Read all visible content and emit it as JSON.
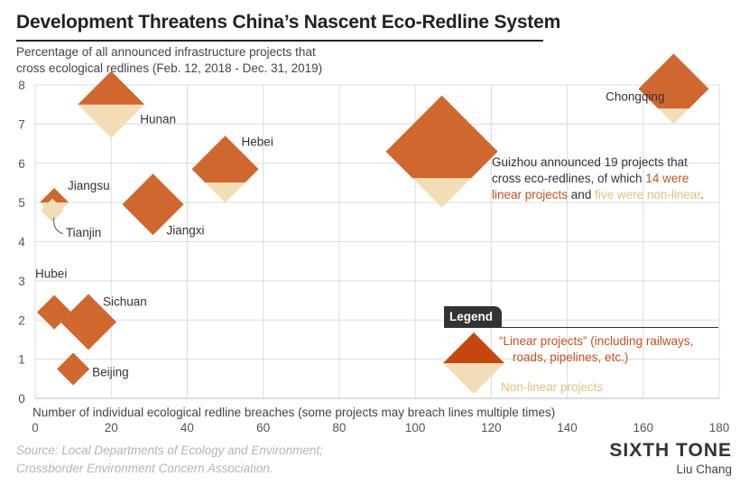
{
  "title": "Development Threatens China’s Nascent Eco-Redline System",
  "ylabel_lines": [
    "Percentage of all announced infrastructure projects that",
    "cross ecological redlines (Feb. 12, 2018 - Dec. 31, 2019)"
  ],
  "xlabel": "Number of individual ecological redline breaches (some projects may breach lines multiple times)",
  "source_lines": [
    "Source: Local Departments of Ecology and Environment;",
    "Crossborder Environment Concern Association."
  ],
  "brand": "SIXTH TONE",
  "author": "Liu Chang",
  "colors": {
    "linear": "#d0672f",
    "nonlinear": "#f3dcb6",
    "legend_linear": "#c4470e",
    "linear_text": "#c9501c",
    "nonlinear_text": "#e9bf7c"
  },
  "legend": {
    "title": "Legend",
    "linear_label_line1": "“Linear projects” (including railways,",
    "linear_label_line2": "roads, pipelines, etc.)",
    "nonlinear_label": "Non-linear projects"
  },
  "annotation": {
    "line1": "Guizhou announced 19 projects that",
    "line2": "cross eco-redlines, of which ",
    "linear_part": "14 were linear projects",
    "mid": " and ",
    "nonlinear_part": "five were non-linear",
    "end": "."
  },
  "chart_data": {
    "type": "scatter",
    "x_axis": {
      "min": 0,
      "max": 180,
      "ticks": [
        0,
        20,
        40,
        60,
        80,
        100,
        120,
        140,
        160,
        180
      ]
    },
    "y_axis": {
      "min": 0,
      "max": 8,
      "ticks": [
        0,
        1,
        2,
        3,
        4,
        5,
        6,
        7,
        8
      ]
    },
    "grid": true,
    "marker": "diamond sized by project count, split into linear (top) and non-linear (bottom) projects",
    "points": [
      {
        "name": "Hunan",
        "x": 20,
        "y": 7.5,
        "linear_share": 0.5
      },
      {
        "name": "Chongqing",
        "x": 168,
        "y": 7.9,
        "linear_share": 0.78
      },
      {
        "name": "Hebei",
        "x": 50,
        "y": 5.85,
        "linear_share": 0.7
      },
      {
        "name": "Guizhou",
        "x": 107,
        "y": 6.3,
        "linear": 14,
        "nonlinear": 5
      },
      {
        "name": "Jiangsu",
        "x": 5,
        "y": 5.0,
        "linear_share": 0.5
      },
      {
        "name": "Tianjin",
        "x": 4.5,
        "y": 4.8,
        "linear_share": 0
      },
      {
        "name": "Jiangxi",
        "x": 31,
        "y": 4.95,
        "linear_share": 1
      },
      {
        "name": "Hubei",
        "x": 5,
        "y": 2.2,
        "linear_share": 1
      },
      {
        "name": "Sichuan",
        "x": 14,
        "y": 1.95,
        "linear_share": 1
      },
      {
        "name": "Beijing",
        "x": 10,
        "y": 0.75,
        "linear_share": 1
      }
    ]
  }
}
